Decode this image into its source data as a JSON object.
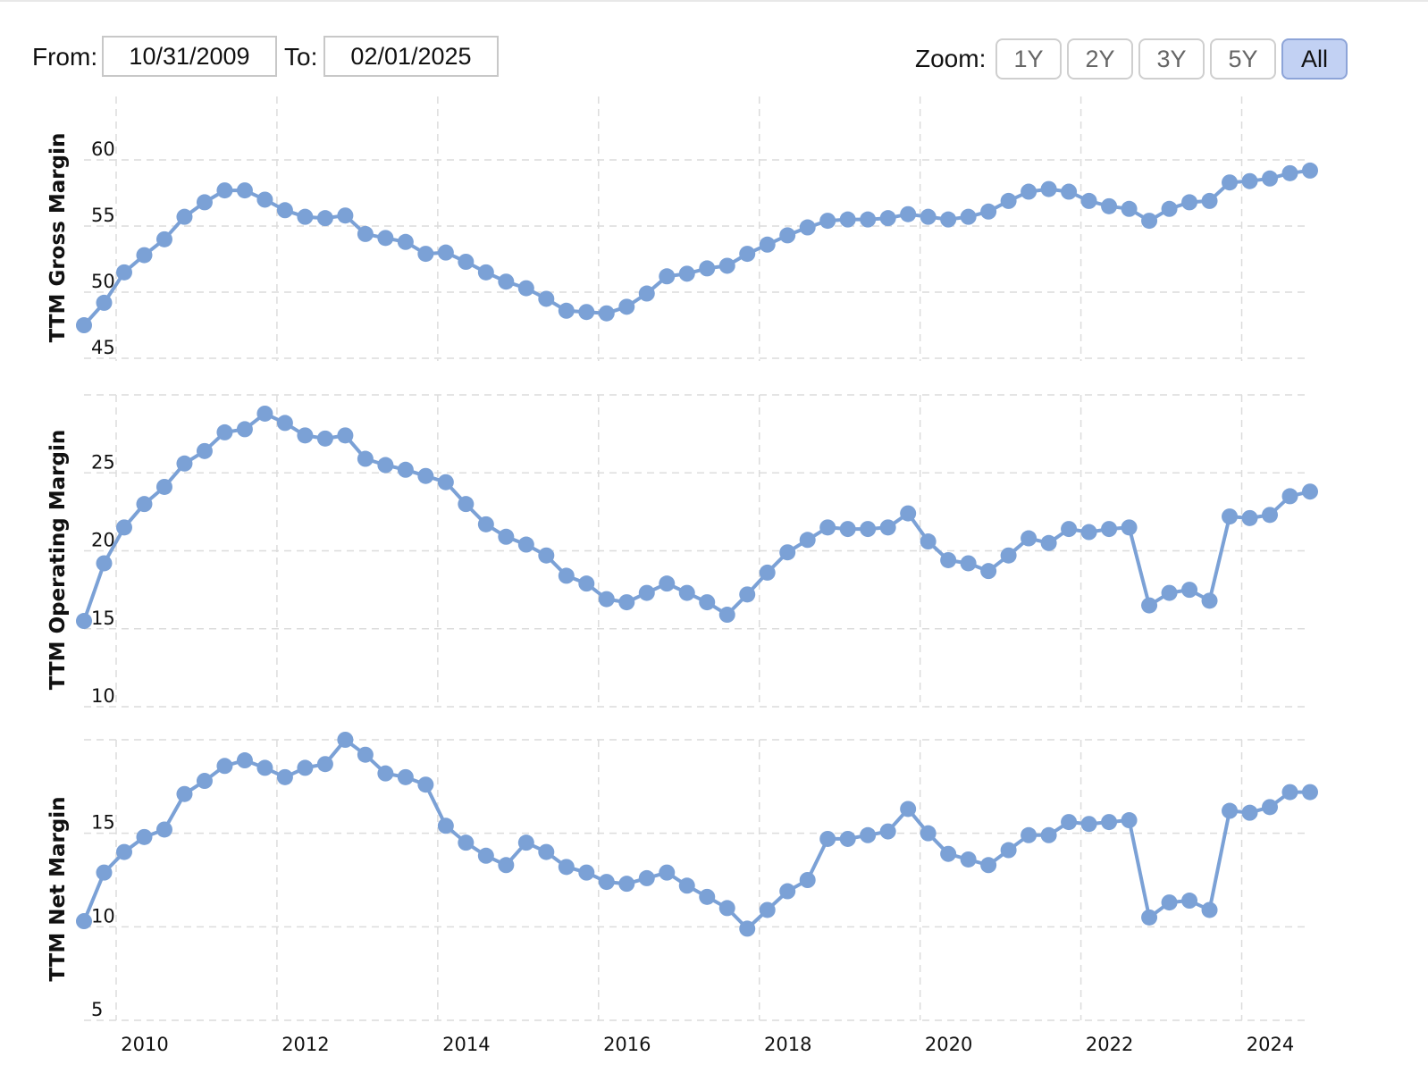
{
  "range_selector": {
    "from_label": "From:",
    "from_value": "10/31/2009",
    "to_label": "To:",
    "to_value": "02/01/2025"
  },
  "zoom": {
    "label": "Zoom:",
    "buttons": [
      "1Y",
      "2Y",
      "3Y",
      "5Y",
      "All"
    ],
    "active": "All"
  },
  "colors": {
    "series": "#7ba1d6",
    "grid": "#dcdcdc",
    "active_button": "#c2d1f3"
  },
  "chart_data": [
    {
      "type": "line",
      "ylabel": "TTM Gross Margin",
      "yticks": [
        45,
        50,
        55,
        60
      ],
      "ylim": [
        44.8,
        64.8
      ],
      "x": [
        2009.6,
        2009.85,
        2010.1,
        2010.35,
        2010.6,
        2010.85,
        2011.1,
        2011.35,
        2011.6,
        2011.85,
        2012.1,
        2012.35,
        2012.6,
        2012.85,
        2013.1,
        2013.35,
        2013.6,
        2013.85,
        2014.1,
        2014.35,
        2014.6,
        2014.85,
        2015.1,
        2015.35,
        2015.6,
        2015.85,
        2016.1,
        2016.35,
        2016.6,
        2016.85,
        2017.1,
        2017.35,
        2017.6,
        2017.85,
        2018.1,
        2018.35,
        2018.6,
        2018.85,
        2019.1,
        2019.35,
        2019.6,
        2019.85,
        2020.1,
        2020.35,
        2020.6,
        2020.85,
        2021.1,
        2021.35,
        2021.6,
        2021.85,
        2022.1,
        2022.35,
        2022.6,
        2022.85,
        2023.1,
        2023.35,
        2023.6,
        2023.85,
        2024.1,
        2024.35,
        2024.6,
        2024.85
      ],
      "values": [
        47.5,
        49.2,
        51.5,
        52.8,
        54.0,
        55.7,
        56.8,
        57.7,
        57.7,
        57.0,
        56.2,
        55.7,
        55.6,
        55.8,
        54.4,
        54.1,
        53.8,
        52.9,
        53.0,
        52.3,
        51.5,
        50.8,
        50.3,
        49.5,
        48.6,
        48.5,
        48.4,
        48.9,
        49.9,
        51.2,
        51.4,
        51.8,
        52.0,
        52.9,
        53.6,
        54.3,
        54.9,
        55.4,
        55.5,
        55.5,
        55.6,
        55.9,
        55.7,
        55.5,
        55.7,
        56.1,
        56.9,
        57.6,
        57.8,
        57.6,
        56.9,
        56.5,
        56.3,
        55.4,
        56.3,
        56.8,
        56.9,
        58.3,
        58.4,
        58.6,
        59.0,
        59.2
      ]
    },
    {
      "type": "line",
      "ylabel": "TTM Operating Margin",
      "yticks": [
        10,
        15,
        20,
        25
      ],
      "ylim": [
        10,
        30
      ],
      "x": [
        2009.6,
        2009.85,
        2010.1,
        2010.35,
        2010.6,
        2010.85,
        2011.1,
        2011.35,
        2011.6,
        2011.85,
        2012.1,
        2012.35,
        2012.6,
        2012.85,
        2013.1,
        2013.35,
        2013.6,
        2013.85,
        2014.1,
        2014.35,
        2014.6,
        2014.85,
        2015.1,
        2015.35,
        2015.6,
        2015.85,
        2016.1,
        2016.35,
        2016.6,
        2016.85,
        2017.1,
        2017.35,
        2017.6,
        2017.85,
        2018.1,
        2018.35,
        2018.6,
        2018.85,
        2019.1,
        2019.35,
        2019.6,
        2019.85,
        2020.1,
        2020.35,
        2020.6,
        2020.85,
        2021.1,
        2021.35,
        2021.6,
        2021.85,
        2022.1,
        2022.35,
        2022.6,
        2022.85,
        2023.1,
        2023.35,
        2023.6,
        2023.85,
        2024.1,
        2024.35,
        2024.6,
        2024.85
      ],
      "values": [
        15.5,
        19.2,
        21.5,
        23.0,
        24.1,
        25.6,
        26.4,
        27.6,
        27.8,
        28.8,
        28.2,
        27.4,
        27.2,
        27.4,
        25.9,
        25.5,
        25.2,
        24.8,
        24.4,
        23.0,
        21.7,
        20.9,
        20.4,
        19.7,
        18.4,
        17.9,
        16.9,
        16.7,
        17.3,
        17.9,
        17.3,
        16.7,
        15.9,
        17.2,
        18.6,
        19.9,
        20.7,
        21.5,
        21.4,
        21.4,
        21.5,
        22.4,
        20.6,
        19.4,
        19.2,
        18.7,
        19.7,
        20.8,
        20.5,
        21.4,
        21.2,
        21.4,
        21.5,
        16.5,
        17.3,
        17.5,
        16.8,
        22.2,
        22.1,
        22.3,
        23.5,
        23.8
      ]
    },
    {
      "type": "line",
      "ylabel": "TTM Net Margin",
      "yticks": [
        5,
        10,
        15
      ],
      "ylim": [
        5,
        20
      ],
      "x": [
        2009.6,
        2009.85,
        2010.1,
        2010.35,
        2010.6,
        2010.85,
        2011.1,
        2011.35,
        2011.6,
        2011.85,
        2012.1,
        2012.35,
        2012.6,
        2012.85,
        2013.1,
        2013.35,
        2013.6,
        2013.85,
        2014.1,
        2014.35,
        2014.6,
        2014.85,
        2015.1,
        2015.35,
        2015.6,
        2015.85,
        2016.1,
        2016.35,
        2016.6,
        2016.85,
        2017.1,
        2017.35,
        2017.6,
        2017.85,
        2018.1,
        2018.35,
        2018.6,
        2018.85,
        2019.1,
        2019.35,
        2019.6,
        2019.85,
        2020.1,
        2020.35,
        2020.6,
        2020.85,
        2021.1,
        2021.35,
        2021.6,
        2021.85,
        2022.1,
        2022.35,
        2022.6,
        2022.85,
        2023.1,
        2023.35,
        2023.6,
        2023.85,
        2024.1,
        2024.35,
        2024.6,
        2024.85
      ],
      "values": [
        10.3,
        12.9,
        14.0,
        14.8,
        15.2,
        17.1,
        17.8,
        18.6,
        18.9,
        18.5,
        18.0,
        18.5,
        18.7,
        20.0,
        19.2,
        18.2,
        18.0,
        17.6,
        15.4,
        14.5,
        13.8,
        13.3,
        14.5,
        14.0,
        13.2,
        12.9,
        12.4,
        12.3,
        12.6,
        12.9,
        12.2,
        11.6,
        11.0,
        9.9,
        10.9,
        11.9,
        12.5,
        14.7,
        14.7,
        14.9,
        15.1,
        16.3,
        15.0,
        13.9,
        13.6,
        13.3,
        14.1,
        14.9,
        14.9,
        15.6,
        15.5,
        15.6,
        15.7,
        10.5,
        11.3,
        11.4,
        10.9,
        16.2,
        16.1,
        16.4,
        17.2,
        17.2
      ]
    }
  ],
  "x_axis": {
    "ticks": [
      2010,
      2012,
      2014,
      2016,
      2018,
      2020,
      2022,
      2024
    ],
    "xlim": [
      2009.6,
      2024.85
    ]
  }
}
